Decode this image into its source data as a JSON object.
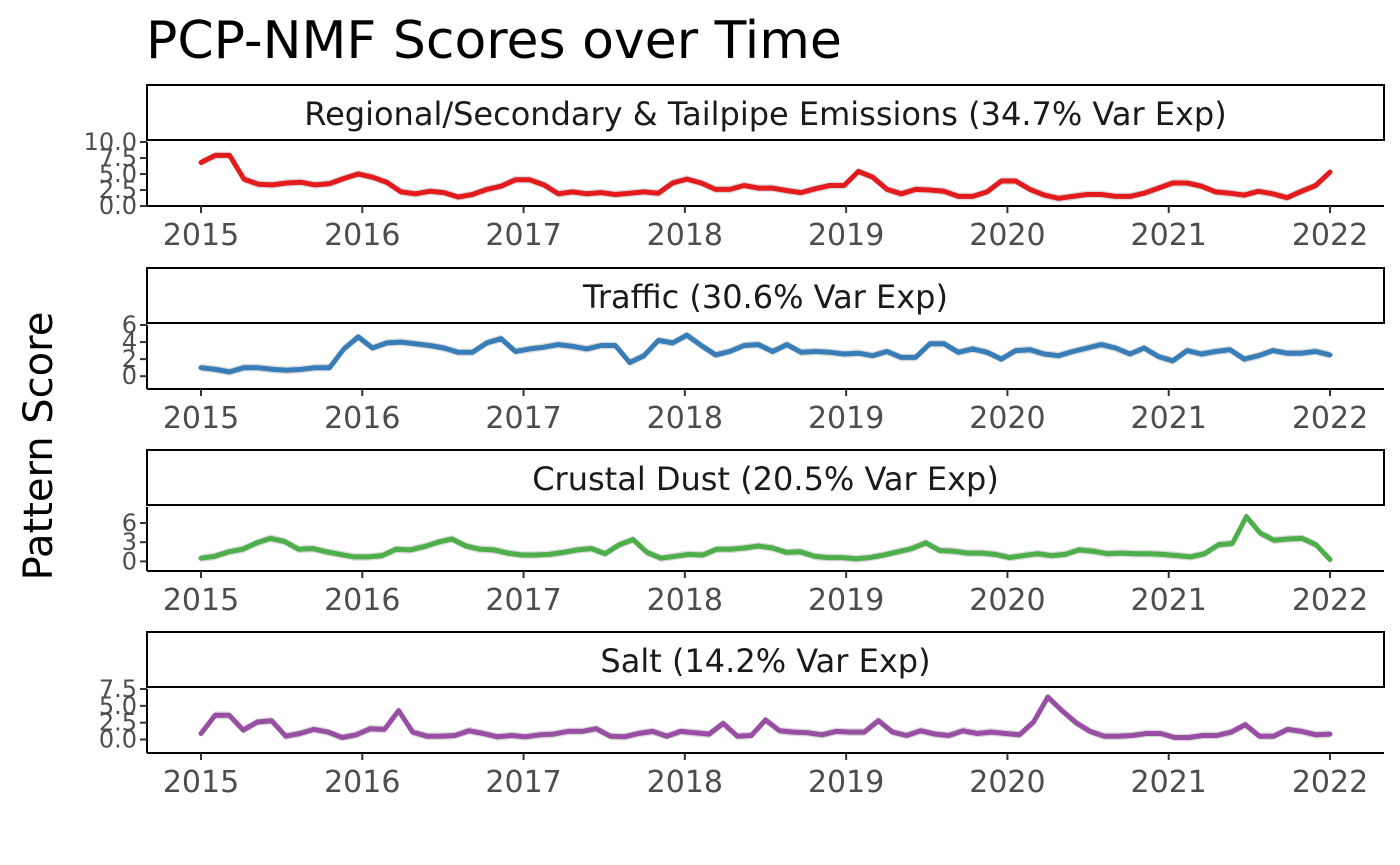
{
  "chart_data": {
    "type": "line",
    "title": "PCP-NMF Scores over Time",
    "ylabel": "Pattern Score",
    "xlabel": "",
    "x_ticks": [
      "2015",
      "2016",
      "2017",
      "2018",
      "2019",
      "2020",
      "2021",
      "2022"
    ],
    "xlim": [
      2015,
      2022
    ],
    "grid": false,
    "band_color": "#d9d9d9",
    "panels": [
      {
        "name": "Regional/Secondary & Tailpipe Emissions (34.7% Var Exp)",
        "color": "#e41a1c",
        "ylim": [
          0,
          10
        ],
        "y_ticks": [
          "0.0",
          "2.5",
          "5.0",
          "7.5",
          "10.0"
        ],
        "y_tick_values": [
          0,
          2.5,
          5,
          7.5,
          10
        ],
        "values": [
          6.8,
          7.9,
          7.9,
          4.2,
          3.4,
          3.3,
          3.6,
          3.7,
          3.3,
          3.5,
          4.3,
          5.0,
          4.5,
          3.7,
          2.2,
          1.9,
          2.3,
          2.1,
          1.4,
          1.8,
          2.6,
          3.1,
          4.1,
          4.1,
          3.3,
          1.9,
          2.2,
          1.9,
          2.1,
          1.8,
          2.0,
          2.2,
          2.0,
          3.6,
          4.2,
          3.6,
          2.6,
          2.6,
          3.2,
          2.8,
          2.8,
          2.4,
          2.1,
          2.7,
          3.2,
          3.2,
          5.4,
          4.5,
          2.6,
          1.9,
          2.6,
          2.5,
          2.3,
          1.5,
          1.5,
          2.2,
          3.9,
          3.9,
          2.6,
          1.7,
          1.2,
          1.5,
          1.8,
          1.8,
          1.5,
          1.5,
          2.0,
          2.8,
          3.6,
          3.6,
          3.1,
          2.2,
          2.0,
          1.7,
          2.3,
          1.9,
          1.3,
          2.3,
          3.2,
          5.3
        ]
      },
      {
        "name": "Traffic (30.6% Var Exp)",
        "color": "#377eb8",
        "ylim": [
          -1.5,
          6
        ],
        "y_ticks": [
          "0",
          "2",
          "4",
          "6"
        ],
        "y_tick_values": [
          0,
          2,
          4,
          6
        ],
        "values": [
          1.0,
          0.8,
          0.5,
          1.0,
          1.0,
          0.8,
          0.7,
          0.8,
          1.0,
          1.0,
          3.2,
          4.6,
          3.3,
          3.9,
          4.0,
          3.8,
          3.6,
          3.3,
          2.8,
          2.8,
          3.9,
          4.4,
          2.9,
          3.2,
          3.4,
          3.7,
          3.5,
          3.2,
          3.6,
          3.6,
          1.6,
          2.4,
          4.2,
          3.9,
          4.8,
          3.6,
          2.5,
          2.9,
          3.6,
          3.7,
          2.9,
          3.7,
          2.8,
          2.9,
          2.8,
          2.6,
          2.7,
          2.4,
          2.9,
          2.2,
          2.2,
          3.8,
          3.8,
          2.8,
          3.2,
          2.8,
          2.0,
          3.0,
          3.1,
          2.6,
          2.4,
          2.9,
          3.3,
          3.7,
          3.3,
          2.6,
          3.3,
          2.3,
          1.8,
          3.0,
          2.6,
          2.9,
          3.1,
          2.0,
          2.4,
          3.0,
          2.7,
          2.7,
          2.9,
          2.5
        ]
      },
      {
        "name": "Crustal Dust (20.5% Var Exp)",
        "color": "#4daf4a",
        "ylim": [
          -1.5,
          8.5
        ],
        "y_ticks": [
          "0",
          "3",
          "6"
        ],
        "y_tick_values": [
          0,
          3,
          6
        ],
        "values": [
          0.5,
          0.8,
          1.5,
          1.9,
          2.9,
          3.6,
          3.1,
          1.9,
          2.0,
          1.5,
          1.1,
          0.7,
          0.7,
          0.9,
          1.9,
          1.8,
          2.3,
          3.0,
          3.5,
          2.4,
          1.9,
          1.8,
          1.3,
          1.0,
          1.0,
          1.1,
          1.4,
          1.8,
          2.0,
          1.2,
          2.6,
          3.4,
          1.4,
          0.5,
          0.8,
          1.1,
          1.0,
          1.9,
          1.9,
          2.1,
          2.4,
          2.1,
          1.4,
          1.5,
          0.8,
          0.6,
          0.6,
          0.4,
          0.6,
          1.0,
          1.5,
          2.0,
          2.9,
          1.7,
          1.6,
          1.3,
          1.3,
          1.1,
          0.6,
          0.9,
          1.2,
          0.9,
          1.1,
          1.8,
          1.6,
          1.2,
          1.3,
          1.2,
          1.2,
          1.1,
          0.9,
          0.7,
          1.2,
          2.6,
          2.8,
          7.0,
          4.4,
          3.3,
          3.5,
          3.6,
          2.6,
          0.3
        ]
      },
      {
        "name": "Salt (14.2% Var Exp)",
        "color": "#984ea3",
        "ylim": [
          -2,
          7.5
        ],
        "y_ticks": [
          "0.0",
          "2.5",
          "5.0",
          "7.5"
        ],
        "y_tick_values": [
          0,
          2.5,
          5,
          7.5
        ],
        "values": [
          0.9,
          3.6,
          3.6,
          1.4,
          2.6,
          2.8,
          0.5,
          0.9,
          1.5,
          1.1,
          0.3,
          0.7,
          1.6,
          1.5,
          4.3,
          1.1,
          0.5,
          0.5,
          0.6,
          1.3,
          0.9,
          0.4,
          0.6,
          0.4,
          0.7,
          0.8,
          1.2,
          1.2,
          1.6,
          0.5,
          0.4,
          0.9,
          1.2,
          0.5,
          1.2,
          1.0,
          0.8,
          2.4,
          0.5,
          0.6,
          2.9,
          1.3,
          1.1,
          1.0,
          0.7,
          1.2,
          1.1,
          1.1,
          2.8,
          1.1,
          0.6,
          1.3,
          0.8,
          0.6,
          1.3,
          0.9,
          1.1,
          0.9,
          0.7,
          2.6,
          6.3,
          4.3,
          2.5,
          1.2,
          0.5,
          0.5,
          0.6,
          0.9,
          0.9,
          0.3,
          0.3,
          0.6,
          0.6,
          1.1,
          2.2,
          0.5,
          0.5,
          1.5,
          1.2,
          0.7,
          0.8
        ]
      }
    ]
  }
}
